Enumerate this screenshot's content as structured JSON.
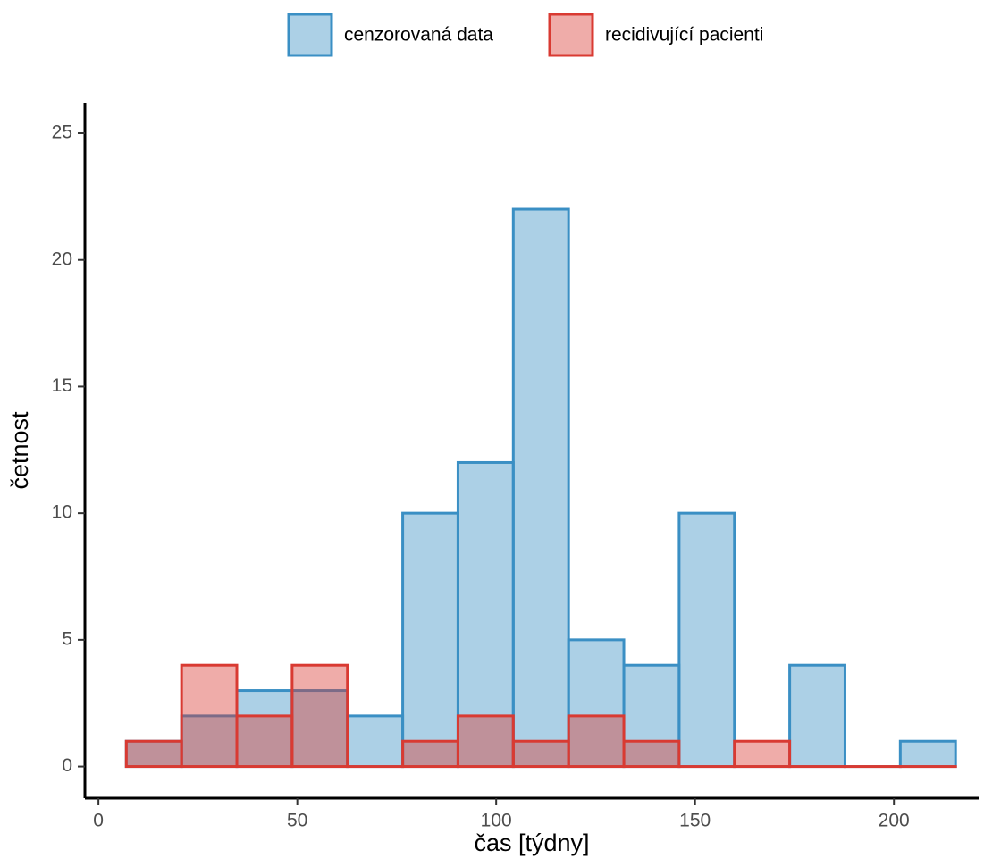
{
  "chart_data": {
    "type": "histogram",
    "x_label": "čas [týdny]",
    "y_label": "četnost",
    "bins": [
      7,
      20.9,
      34.8,
      48.7,
      62.6,
      76.5,
      90.4,
      104.3,
      118.2,
      132.1,
      146,
      159.9,
      173.8,
      187.7,
      201.6,
      215.5
    ],
    "series": [
      {
        "name": "cenzorovaná data",
        "color": "#3a8fc4",
        "values": [
          1,
          2,
          3,
          3,
          2,
          10,
          12,
          22,
          5,
          4,
          10,
          0,
          4,
          0,
          1
        ]
      },
      {
        "name": "recidivující pacienti",
        "color": "#d93a32",
        "values": [
          1,
          4,
          2,
          4,
          0,
          1,
          2,
          1,
          2,
          1,
          0,
          1,
          0,
          0,
          0
        ]
      }
    ],
    "xlim": [
      -3.4,
      221.3
    ],
    "ylim": [
      -1.25,
      26.2
    ],
    "xticks": [
      0,
      50,
      100,
      150,
      200
    ],
    "yticks": [
      0,
      5,
      10,
      15,
      20,
      25
    ],
    "grid": false,
    "legend_position": "top"
  }
}
